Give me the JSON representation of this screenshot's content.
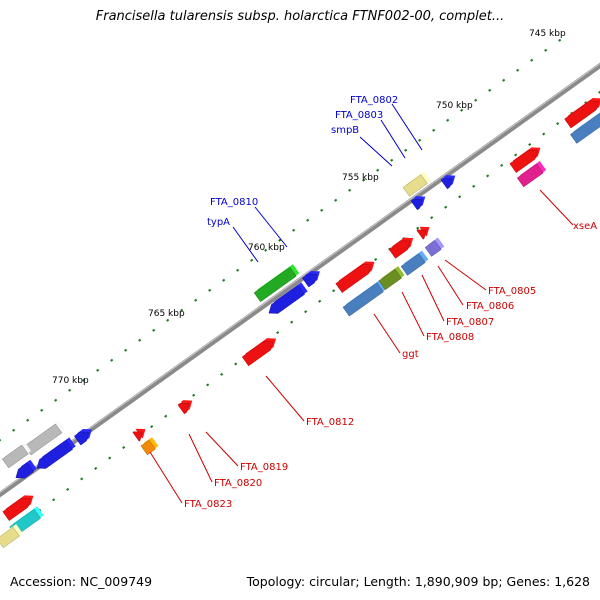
{
  "title": "Francisella tularensis subsp. holarctica FTNF002-00, complet...",
  "footer": {
    "accession": "Accession: NC_009749",
    "topology": "Topology: circular; Length: 1,890,909 bp; Genes: 1,628"
  },
  "kbp_ticks": [
    "745 kbp",
    "750 kbp",
    "755 kbp",
    "760 kbp",
    "765 kbp",
    "770 kbp"
  ],
  "labels_blue": [
    "FTA_0802",
    "FTA_0803",
    "smpB",
    "FTA_0810",
    "typA"
  ],
  "labels_red": [
    "xseA",
    "FTA_0805",
    "FTA_0806",
    "FTA_0807",
    "FTA_0808",
    "ggt",
    "FTA_0812",
    "FTA_0819",
    "FTA_0820",
    "FTA_0823"
  ],
  "colors": {
    "backbone": "#8a8a8a",
    "tick_dot": "#1a7a1a",
    "label_blue": "#0000cc",
    "label_red": "#cc0000",
    "gene_red": "#ee1111",
    "gene_blue": "#1f1fe0",
    "gene_steelblue": "#4a7fbf",
    "gene_green": "#22aa22",
    "gene_olive": "#6b8e23",
    "gene_khaki": "#e6dc8c",
    "gene_magenta": "#e0208c",
    "gene_purple": "#7b6fd6",
    "gene_gray": "#b8b8b8",
    "gene_cyan": "#22c7c7",
    "gene_orange": "#f08a0a"
  }
}
